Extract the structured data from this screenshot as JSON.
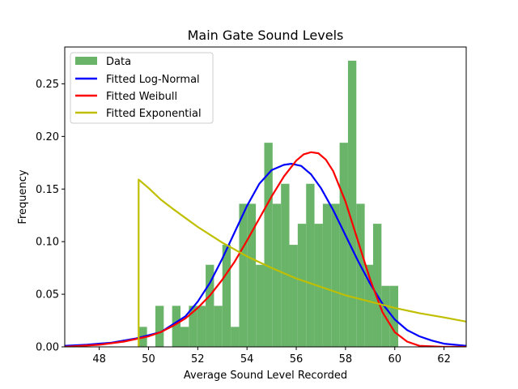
{
  "chart_data": {
    "type": "bar",
    "title": "Main Gate Sound Levels",
    "xlabel": "Average Sound Level Recorded",
    "ylabel": "Frequency",
    "xlim": [
      46.6,
      62.9
    ],
    "ylim": [
      0,
      0.285
    ],
    "xticks": [
      "48",
      "50",
      "52",
      "54",
      "56",
      "58",
      "60",
      "62"
    ],
    "yticks": [
      "0.00",
      "0.05",
      "0.10",
      "0.15",
      "0.20",
      "0.25"
    ],
    "grid": false,
    "legend_position": "upper-left",
    "histogram": {
      "name": "Data",
      "color": "#6ab46a",
      "bins": [
        {
          "x0": 49.6,
          "x1": 49.94,
          "value": 0.019
        },
        {
          "x0": 50.28,
          "x1": 50.62,
          "value": 0.039
        },
        {
          "x0": 50.96,
          "x1": 51.3,
          "value": 0.039
        },
        {
          "x0": 51.3,
          "x1": 51.64,
          "value": 0.019
        },
        {
          "x0": 51.64,
          "x1": 51.98,
          "value": 0.039
        },
        {
          "x0": 51.98,
          "x1": 52.32,
          "value": 0.039
        },
        {
          "x0": 52.32,
          "x1": 52.66,
          "value": 0.078
        },
        {
          "x0": 52.66,
          "x1": 53.0,
          "value": 0.039
        },
        {
          "x0": 53.0,
          "x1": 53.34,
          "value": 0.097
        },
        {
          "x0": 53.34,
          "x1": 53.68,
          "value": 0.019
        },
        {
          "x0": 53.68,
          "x1": 54.02,
          "value": 0.136
        },
        {
          "x0": 54.02,
          "x1": 54.36,
          "value": 0.136
        },
        {
          "x0": 54.36,
          "x1": 54.7,
          "value": 0.078
        },
        {
          "x0": 54.7,
          "x1": 55.04,
          "value": 0.194
        },
        {
          "x0": 55.04,
          "x1": 55.38,
          "value": 0.136
        },
        {
          "x0": 55.38,
          "x1": 55.72,
          "value": 0.155
        },
        {
          "x0": 55.72,
          "x1": 56.06,
          "value": 0.097
        },
        {
          "x0": 56.06,
          "x1": 56.4,
          "value": 0.117
        },
        {
          "x0": 56.4,
          "x1": 56.74,
          "value": 0.155
        },
        {
          "x0": 56.74,
          "x1": 57.08,
          "value": 0.117
        },
        {
          "x0": 57.08,
          "x1": 57.42,
          "value": 0.136
        },
        {
          "x0": 57.42,
          "x1": 57.76,
          "value": 0.136
        },
        {
          "x0": 57.76,
          "x1": 58.1,
          "value": 0.194
        },
        {
          "x0": 58.1,
          "x1": 58.44,
          "value": 0.272
        },
        {
          "x0": 58.44,
          "x1": 58.78,
          "value": 0.136
        },
        {
          "x0": 58.78,
          "x1": 59.12,
          "value": 0.078
        },
        {
          "x0": 59.12,
          "x1": 59.46,
          "value": 0.117
        },
        {
          "x0": 59.46,
          "x1": 59.8,
          "value": 0.058
        },
        {
          "x0": 59.8,
          "x1": 60.14,
          "value": 0.058
        }
      ]
    },
    "series": [
      {
        "name": "Fitted Log-Normal",
        "color": "#0000ff",
        "x": [
          46.6,
          47.5,
          48.5,
          49.5,
          50.5,
          51.5,
          52.0,
          52.5,
          53.0,
          53.5,
          54.0,
          54.5,
          55.0,
          55.5,
          55.8,
          56.2,
          56.6,
          57.0,
          57.5,
          58.0,
          58.5,
          59.0,
          59.5,
          60.0,
          60.5,
          61.0,
          61.5,
          62.0,
          62.9
        ],
        "y": [
          0.001,
          0.002,
          0.004,
          0.008,
          0.014,
          0.029,
          0.043,
          0.061,
          0.084,
          0.109,
          0.134,
          0.155,
          0.168,
          0.173,
          0.174,
          0.172,
          0.164,
          0.151,
          0.13,
          0.106,
          0.082,
          0.06,
          0.041,
          0.026,
          0.016,
          0.01,
          0.006,
          0.003,
          0.001
        ]
      },
      {
        "name": "Fitted Weibull",
        "color": "#ff0000",
        "x": [
          46.6,
          48.0,
          49.0,
          50.0,
          50.5,
          51.0,
          51.5,
          52.0,
          52.5,
          53.0,
          53.5,
          54.0,
          54.5,
          55.0,
          55.5,
          56.0,
          56.3,
          56.6,
          56.9,
          57.2,
          57.5,
          58.0,
          58.5,
          59.0,
          59.5,
          60.0,
          60.5,
          61.0,
          62.0,
          62.9
        ],
        "y": [
          0.0,
          0.002,
          0.005,
          0.01,
          0.014,
          0.02,
          0.027,
          0.037,
          0.049,
          0.064,
          0.081,
          0.101,
          0.122,
          0.143,
          0.162,
          0.177,
          0.183,
          0.185,
          0.184,
          0.178,
          0.167,
          0.138,
          0.101,
          0.064,
          0.033,
          0.014,
          0.005,
          0.001,
          0.0,
          0.0
        ]
      },
      {
        "name": "Fitted Exponential",
        "color": "#bfbf00",
        "x": [
          49.6,
          49.6,
          50.0,
          50.5,
          51.0,
          52.0,
          53.0,
          54.0,
          55.0,
          56.0,
          57.0,
          58.0,
          59.0,
          60.0,
          61.0,
          62.0,
          62.9
        ],
        "y": [
          0.0,
          0.159,
          0.151,
          0.14,
          0.131,
          0.114,
          0.099,
          0.086,
          0.075,
          0.065,
          0.057,
          0.049,
          0.043,
          0.037,
          0.032,
          0.028,
          0.024
        ]
      }
    ]
  }
}
